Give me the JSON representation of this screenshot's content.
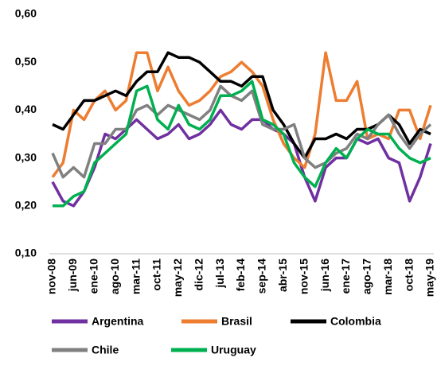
{
  "chart_data": {
    "type": "line",
    "categories": [
      "nov-08",
      null,
      "jun-09",
      null,
      "ene-10",
      null,
      "ago-10",
      null,
      "mar-11",
      null,
      "oct-11",
      null,
      "may-12",
      null,
      "dic-12",
      null,
      "jul-13",
      null,
      "feb-14",
      null,
      "sep-14",
      null,
      "abr-15",
      null,
      "nov-15",
      null,
      "jun-16",
      null,
      "ene-17",
      null,
      "ago-17",
      null,
      "mar-18",
      null,
      "oct-18",
      null,
      "may-19"
    ],
    "series": [
      {
        "name": "Argentina",
        "color": "#7030a0",
        "values": [
          0.25,
          0.21,
          0.2,
          0.23,
          0.28,
          0.35,
          0.34,
          0.36,
          0.38,
          0.36,
          0.34,
          0.35,
          0.37,
          0.34,
          0.35,
          0.37,
          0.4,
          0.37,
          0.36,
          0.38,
          0.38,
          0.36,
          0.35,
          0.33,
          0.26,
          0.21,
          0.28,
          0.3,
          0.3,
          0.34,
          0.33,
          0.34,
          0.3,
          0.29,
          0.21,
          0.26,
          0.33
        ]
      },
      {
        "name": "Brasil",
        "color": "#ed7d31",
        "values": [
          0.26,
          0.29,
          0.4,
          0.38,
          0.42,
          0.44,
          0.4,
          0.42,
          0.52,
          0.52,
          0.44,
          0.49,
          0.44,
          0.41,
          0.42,
          0.44,
          0.47,
          0.48,
          0.5,
          0.48,
          0.45,
          0.38,
          0.33,
          0.3,
          0.28,
          0.35,
          0.52,
          0.42,
          0.42,
          0.46,
          0.34,
          0.35,
          0.34,
          0.4,
          0.4,
          0.34,
          0.41
        ]
      },
      {
        "name": "Colombia",
        "color": "#000000",
        "values": [
          0.37,
          0.36,
          0.39,
          0.42,
          0.42,
          0.43,
          0.44,
          0.43,
          0.46,
          0.48,
          0.48,
          0.52,
          0.51,
          0.51,
          0.5,
          0.48,
          0.46,
          0.46,
          0.45,
          0.47,
          0.47,
          0.4,
          0.37,
          0.33,
          0.3,
          0.34,
          0.34,
          0.35,
          0.34,
          0.36,
          0.36,
          0.37,
          0.39,
          0.37,
          0.33,
          0.36,
          0.35
        ]
      },
      {
        "name": "Chile",
        "color": "#808080",
        "values": [
          0.31,
          0.26,
          0.28,
          0.26,
          0.33,
          0.33,
          0.36,
          0.36,
          0.4,
          0.41,
          0.39,
          0.41,
          0.4,
          0.39,
          0.38,
          0.4,
          0.45,
          0.43,
          0.42,
          0.44,
          0.37,
          0.36,
          0.36,
          0.37,
          0.3,
          0.28,
          0.29,
          0.31,
          0.32,
          0.35,
          0.34,
          0.37,
          0.39,
          0.35,
          0.32,
          0.35,
          0.37
        ]
      },
      {
        "name": "Uruguay",
        "color": "#00b050",
        "values": [
          0.2,
          0.2,
          0.22,
          0.23,
          0.29,
          0.31,
          0.33,
          0.35,
          0.44,
          0.45,
          0.38,
          0.36,
          0.41,
          0.37,
          0.36,
          0.38,
          0.43,
          0.43,
          0.44,
          0.46,
          0.38,
          0.37,
          0.35,
          0.29,
          0.26,
          0.24,
          0.29,
          0.32,
          0.3,
          0.34,
          0.36,
          0.35,
          0.35,
          0.32,
          0.3,
          0.29,
          0.3
        ]
      }
    ],
    "ylim": [
      0.1,
      0.6
    ],
    "yticks": [
      {
        "value": 0.1,
        "label": "0,10"
      },
      {
        "value": 0.2,
        "label": "0,20"
      },
      {
        "value": 0.3,
        "label": "0,30"
      },
      {
        "value": 0.4,
        "label": "0,40"
      },
      {
        "value": 0.5,
        "label": "0,50"
      },
      {
        "value": 0.6,
        "label": "0,60"
      }
    ],
    "grid": false
  }
}
